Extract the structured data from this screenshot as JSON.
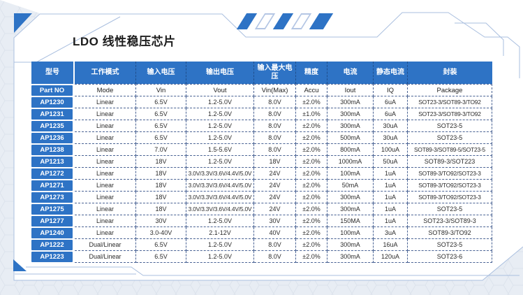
{
  "page": {
    "title": "LDO 线性稳压芯片"
  },
  "colors": {
    "accent_blue": "#2e73c5",
    "frame_line": "#aabfdf",
    "table_border": "#4a6394",
    "page_background": "#e8edf4",
    "panel_background": "#ffffff",
    "header_text": "#ffffff",
    "cell_text": "#2b2b2b"
  },
  "decor": {
    "parallelogram_bars": [
      "filled",
      "outline",
      "filled",
      "outline",
      "filled"
    ]
  },
  "table": {
    "headers_cn": [
      "型号",
      "工作模式",
      "输入电压",
      "输出电压",
      "输入最大电压",
      "精度",
      "电流",
      "静态电流",
      "封装"
    ],
    "headers_en": [
      "Part NO",
      "Mode",
      "Vin",
      "Vout",
      "Vin(Max)",
      "Accu",
      "Iout",
      "IQ",
      "Package"
    ],
    "rows": [
      [
        "AP1230",
        "Linear",
        "6.5V",
        "1.2-5.0V",
        "8.0V",
        "±2.0%",
        "300mA",
        "6uA",
        "SOT23-3/SOT89-3/TO92"
      ],
      [
        "AP1231",
        "Linear",
        "6.5V",
        "1.2-5.0V",
        "8.0V",
        "±1.0%",
        "300mA",
        "6uA",
        "SOT23-3/SOT89-3/TO92"
      ],
      [
        "AP1235",
        "Linear",
        "6.5V",
        "1.2-5.0V",
        "8.0V",
        "±2.0%",
        "300mA",
        "30uA",
        "SOT23-5"
      ],
      [
        "AP1236",
        "Linear",
        "6.5V",
        "1.2-5.0V",
        "8.0V",
        "±2.0%",
        "500mA",
        "30uA",
        "SOT23-5"
      ],
      [
        "AP1238",
        "Linear",
        "7.0V",
        "1.5-5.6V",
        "8.0V",
        "±2.0%",
        "800mA",
        "100uA",
        "SOT89-3/SOT89-5/SOT23-5"
      ],
      [
        "AP1213",
        "Linear",
        "18V",
        "1.2-5.0V",
        "18V",
        "±2.0%",
        "1000mA",
        "50uA",
        "SOT89-3/SOT223"
      ],
      [
        "AP1272",
        "Linear",
        "18V",
        "3.0V/3.3V/3.6V/4.4V/5.0V",
        "24V",
        "±2.0%",
        "100mA",
        "1uA",
        "SOT89-3/TO92/SOT23-3"
      ],
      [
        "AP1271",
        "Linear",
        "18V",
        "3.0V/3.3V/3.6V/4.4V/5.0V",
        "24V",
        "±2.0%",
        "50mA",
        "1uA",
        "SOT89-3/TO92/SOT23-3"
      ],
      [
        "AP1273",
        "Linear",
        "18V",
        "3.0V/3.3V/3.6V/4.4V/5.0V",
        "24V",
        "±2.0%",
        "300mA",
        "1uA",
        "SOT89-3/TO92/SOT23-3"
      ],
      [
        "AP1275",
        "Linear",
        "18V",
        "3.0V/3.3V/3.6V/4.4V/5.0V",
        "24V",
        "±2.0%",
        "300mA",
        "1uA",
        "SOT23-5"
      ],
      [
        "AP1277",
        "Linear",
        "30V",
        "1.2-5.0V",
        "30V",
        "±2.0%",
        "150MA",
        "1uA",
        "SOT23-3/SOT89-3"
      ],
      [
        "AP1240",
        "Linear",
        "3.0-40V",
        "2.1-12V",
        "40V",
        "±2.0%",
        "100mA",
        "3uA",
        "SOT89-3/TO92"
      ],
      [
        "AP1222",
        "Dual/Linear",
        "6.5V",
        "1.2-5.0V",
        "8.0V",
        "±2.0%",
        "300mA",
        "16uA",
        "SOT23-5"
      ],
      [
        "AP1223",
        "Dual/Linear",
        "6.5V",
        "1.2-5.0V",
        "8.0V",
        "±2.0%",
        "300mA",
        "120uA",
        "SOT23-6"
      ]
    ]
  }
}
